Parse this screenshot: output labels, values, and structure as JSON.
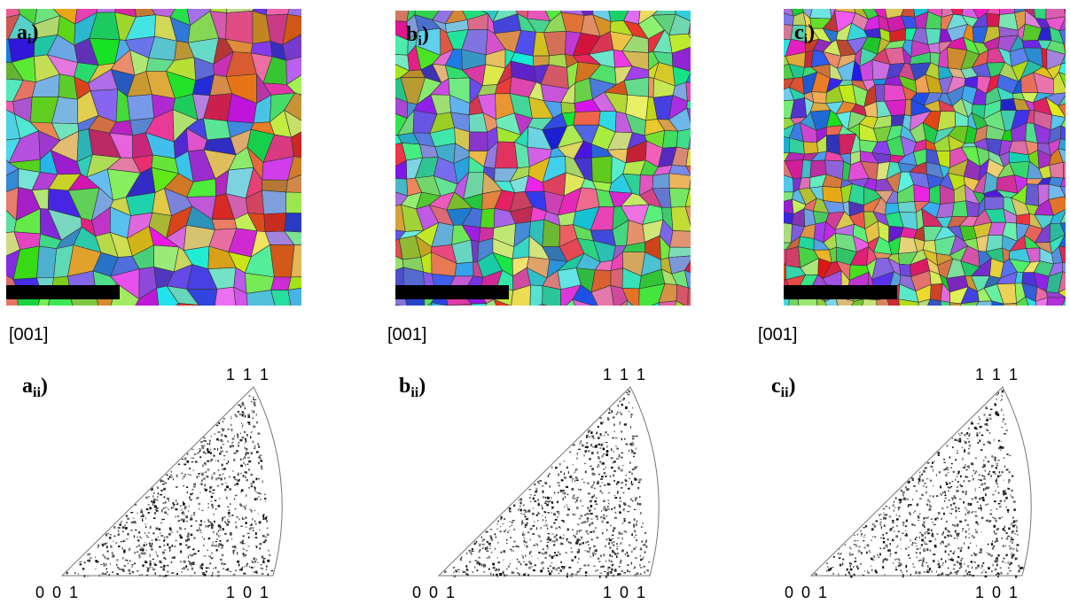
{
  "panels": [
    {
      "map_label": {
        "letter": "a",
        "subscript": "i",
        "close": ")"
      },
      "direction": "[001]",
      "pole_label": {
        "letter": "a",
        "subscript": "ii",
        "close": ")"
      },
      "corners": {
        "top": "1 1 1",
        "origin": "0 0 1",
        "right": "1 0 1"
      }
    },
    {
      "map_label": {
        "letter": "b",
        "subscript": "i",
        "close": ")"
      },
      "direction": "[001]",
      "pole_label": {
        "letter": "b",
        "subscript": "ii",
        "close": ")"
      },
      "corners": {
        "top": "1 1 1",
        "origin": "0 0 1",
        "right": "1 0 1"
      }
    },
    {
      "map_label": {
        "letter": "c",
        "subscript": "i",
        "close": ")"
      },
      "direction": "[001]",
      "pole_label": {
        "letter": "c",
        "subscript": "ii",
        "close": ")"
      },
      "corners": {
        "top": "1 1 1",
        "origin": "0 0 1",
        "right": "1 0 1"
      }
    }
  ]
}
